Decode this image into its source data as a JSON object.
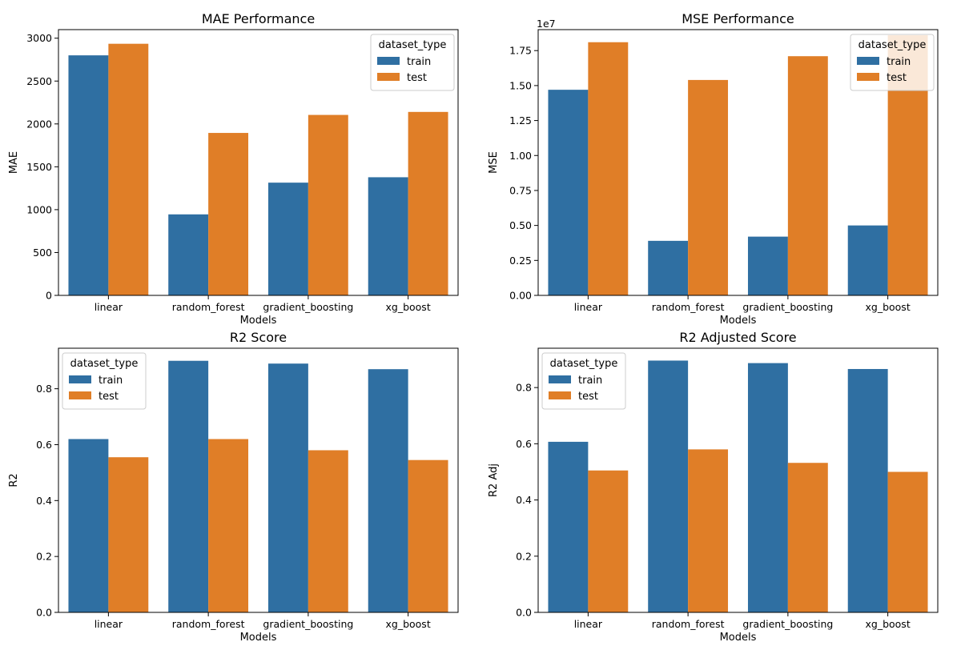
{
  "chart_data": [
    {
      "type": "bar",
      "title": "MAE Performance",
      "xlabel": "Models",
      "ylabel": "MAE",
      "offset_label": "",
      "categories": [
        "linear",
        "random_forest",
        "gradient_boosting",
        "xg_boost"
      ],
      "yticks": [
        "0",
        "500",
        "1000",
        "1500",
        "2000",
        "2500",
        "3000"
      ],
      "ylim": [
        0,
        3100
      ],
      "series": [
        {
          "name": "train",
          "values": [
            2800,
            945,
            1315,
            1378
          ]
        },
        {
          "name": "test",
          "values": [
            2935,
            1895,
            2105,
            2140
          ]
        }
      ],
      "legend": {
        "title": "dataset_type",
        "position": "top-right"
      }
    },
    {
      "type": "bar",
      "title": "MSE Performance",
      "xlabel": "Models",
      "ylabel": "MSE",
      "offset_label": "1e7",
      "categories": [
        "linear",
        "random_forest",
        "gradient_boosting",
        "xg_boost"
      ],
      "yticks": [
        "0.00",
        "0.25",
        "0.50",
        "0.75",
        "1.00",
        "1.25",
        "1.50",
        "1.75"
      ],
      "ylim": [
        0,
        1.9
      ],
      "series": [
        {
          "name": "train",
          "values": [
            1.47,
            0.39,
            0.42,
            0.5
          ]
        },
        {
          "name": "test",
          "values": [
            1.81,
            1.54,
            1.71,
            1.86
          ]
        }
      ],
      "legend": {
        "title": "dataset_type",
        "position": "top-right"
      }
    },
    {
      "type": "bar",
      "title": "R2 Score",
      "xlabel": "Models",
      "ylabel": "R2",
      "offset_label": "",
      "categories": [
        "linear",
        "random_forest",
        "gradient_boosting",
        "xg_boost"
      ],
      "yticks": [
        "0.0",
        "0.2",
        "0.4",
        "0.6",
        "0.8"
      ],
      "ylim": [
        0,
        0.945
      ],
      "series": [
        {
          "name": "train",
          "values": [
            0.62,
            0.9,
            0.89,
            0.87
          ]
        },
        {
          "name": "test",
          "values": [
            0.555,
            0.62,
            0.58,
            0.545
          ]
        }
      ],
      "legend": {
        "title": "dataset_type",
        "position": "top-left"
      }
    },
    {
      "type": "bar",
      "title": "R2 Adjusted Score",
      "xlabel": "Models",
      "ylabel": "R2 Adj",
      "offset_label": "",
      "categories": [
        "linear",
        "random_forest",
        "gradient_boosting",
        "xg_boost"
      ],
      "yticks": [
        "0.0",
        "0.2",
        "0.4",
        "0.6",
        "0.8"
      ],
      "ylim": [
        0,
        0.94
      ],
      "series": [
        {
          "name": "train",
          "values": [
            0.607,
            0.896,
            0.887,
            0.866
          ]
        },
        {
          "name": "test",
          "values": [
            0.505,
            0.58,
            0.532,
            0.5
          ]
        }
      ],
      "legend": {
        "title": "dataset_type",
        "position": "top-left"
      }
    }
  ],
  "colors": {
    "train": "#2f6fa2",
    "test": "#e07e27"
  }
}
